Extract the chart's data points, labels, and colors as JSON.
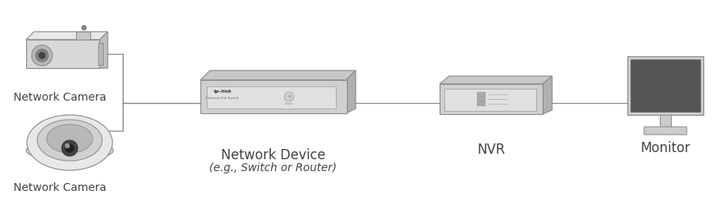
{
  "background_color": "#ffffff",
  "line_color": "#888888",
  "device_fill": "#d0d0d0",
  "device_edge": "#888888",
  "device_top": "#bbbbbb",
  "device_side": "#aaaaaa",
  "monitor_screen": "#555555",
  "monitor_bezel": "#cccccc",
  "labels": {
    "cam_top": "Network Camera",
    "cam_bottom": "Network Camera",
    "network_device_line1": "Network Device",
    "network_device_line2": "(e.g., Switch or Router)",
    "nvr": "NVR",
    "monitor": "Monitor"
  },
  "label_fontsize": 10,
  "label_color": "#444444"
}
